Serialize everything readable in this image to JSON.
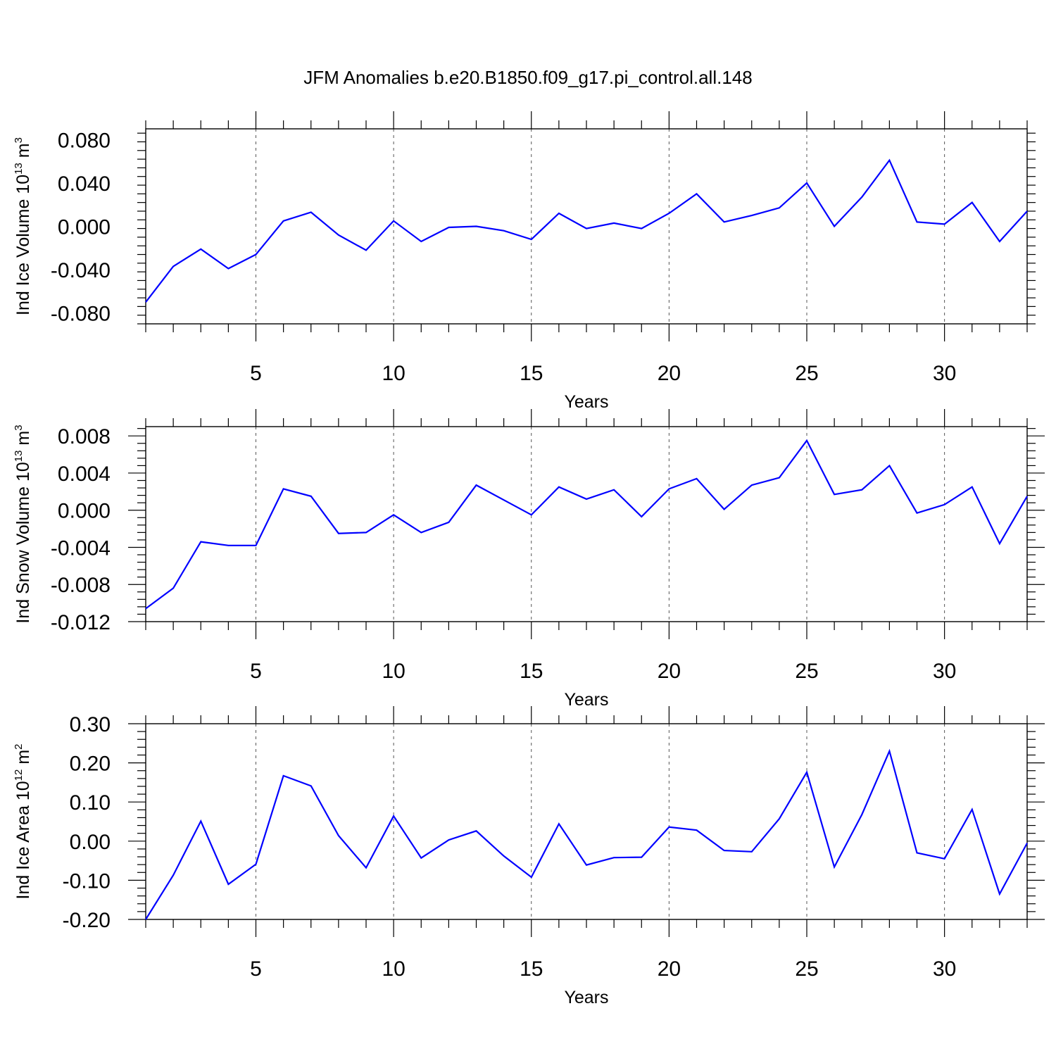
{
  "figure_title": "JFM Anomalies b.e20.B1850.f09_g17.pi_control.all.148",
  "colors": {
    "line": "#0000ff",
    "axes": "#000000",
    "grid": "#555555"
  },
  "chart_data": [
    {
      "type": "line",
      "title": "",
      "xlabel": "Years",
      "ylabel": {
        "text": "Ind Ice Volume 10",
        "sup": "13",
        "unit": " m",
        "unit_sup": "3"
      },
      "xlim": [
        1,
        33
      ],
      "ylim": [
        -0.09,
        0.09
      ],
      "xticks": [
        5,
        10,
        15,
        20,
        25,
        30
      ],
      "xtick_labels": [
        "5",
        "10",
        "15",
        "20",
        "25",
        "30"
      ],
      "yticks": [
        -0.08,
        -0.04,
        0.0,
        0.04,
        0.08
      ],
      "ytick_labels": [
        "-0.080",
        "-0.040",
        "0.000",
        "0.040",
        "0.080"
      ],
      "x": [
        1,
        2,
        3,
        4,
        5,
        6,
        7,
        8,
        9,
        10,
        11,
        12,
        13,
        14,
        15,
        16,
        17,
        18,
        19,
        20,
        21,
        22,
        23,
        24,
        25,
        26,
        27,
        28,
        29,
        30,
        31,
        32,
        33
      ],
      "series": [
        {
          "name": "Ind Ice Volume",
          "values": [
            -0.07,
            -0.037,
            -0.021,
            -0.039,
            -0.026,
            0.005,
            0.013,
            -0.008,
            -0.022,
            0.005,
            -0.014,
            -0.001,
            0.0,
            -0.004,
            -0.012,
            0.012,
            -0.002,
            0.003,
            -0.002,
            0.012,
            0.03,
            0.004,
            0.01,
            0.017,
            0.04,
            0.0,
            0.027,
            0.061,
            0.004,
            0.002,
            0.022,
            -0.014,
            0.014
          ]
        }
      ]
    },
    {
      "type": "line",
      "title": "",
      "xlabel": "Years",
      "ylabel": {
        "text": "Ind Snow Volume 10",
        "sup": "13",
        "unit": " m",
        "unit_sup": "3"
      },
      "xlim": [
        1,
        33
      ],
      "ylim": [
        -0.012,
        0.009
      ],
      "xticks": [
        5,
        10,
        15,
        20,
        25,
        30
      ],
      "xtick_labels": [
        "5",
        "10",
        "15",
        "20",
        "25",
        "30"
      ],
      "yticks": [
        -0.012,
        -0.008,
        -0.004,
        0.0,
        0.004,
        0.008
      ],
      "ytick_labels": [
        "-0.012",
        "-0.008",
        "-0.004",
        "0.000",
        "0.004",
        "0.008"
      ],
      "x": [
        1,
        2,
        3,
        4,
        5,
        6,
        7,
        8,
        9,
        10,
        11,
        12,
        13,
        14,
        15,
        16,
        17,
        18,
        19,
        20,
        21,
        22,
        23,
        24,
        25,
        26,
        27,
        28,
        29,
        30,
        31,
        32,
        33
      ],
      "series": [
        {
          "name": "Ind Snow Volume",
          "values": [
            -0.0106,
            -0.0084,
            -0.0034,
            -0.0038,
            -0.0038,
            0.0023,
            0.0015,
            -0.0025,
            -0.0024,
            -0.0005,
            -0.0024,
            -0.0013,
            0.0027,
            0.0011,
            -0.0005,
            0.0025,
            0.0012,
            0.0022,
            -0.0007,
            0.0023,
            0.0034,
            0.0001,
            0.0027,
            0.0035,
            0.0075,
            0.0017,
            0.0022,
            0.0048,
            -0.0003,
            0.0006,
            0.0025,
            -0.0036,
            0.0015
          ]
        }
      ]
    },
    {
      "type": "line",
      "title": "",
      "xlabel": "Years",
      "ylabel": {
        "text": "Ind Ice Area 10",
        "sup": "12",
        "unit": " m",
        "unit_sup": "2"
      },
      "xlim": [
        1,
        33
      ],
      "ylim": [
        -0.2,
        0.3
      ],
      "xticks": [
        5,
        10,
        15,
        20,
        25,
        30
      ],
      "xtick_labels": [
        "5",
        "10",
        "15",
        "20",
        "25",
        "30"
      ],
      "yticks": [
        -0.2,
        -0.1,
        0.0,
        0.1,
        0.2,
        0.3
      ],
      "ytick_labels": [
        "-0.20",
        "-0.10",
        "0.00",
        "0.10",
        "0.20",
        "0.30"
      ],
      "x": [
        1,
        2,
        3,
        4,
        5,
        6,
        7,
        8,
        9,
        10,
        11,
        12,
        13,
        14,
        15,
        16,
        17,
        18,
        19,
        20,
        21,
        22,
        23,
        24,
        25,
        26,
        27,
        28,
        29,
        30,
        31,
        32,
        33
      ],
      "series": [
        {
          "name": "Ind Ice Area",
          "values": [
            -0.2,
            -0.087,
            0.051,
            -0.11,
            -0.059,
            0.167,
            0.141,
            0.014,
            -0.068,
            0.064,
            -0.043,
            0.003,
            0.026,
            -0.038,
            -0.092,
            0.044,
            -0.061,
            -0.042,
            -0.041,
            0.036,
            0.028,
            -0.024,
            -0.027,
            0.057,
            0.176,
            -0.066,
            0.068,
            0.23,
            -0.03,
            -0.045,
            0.081,
            -0.135,
            -0.005
          ]
        }
      ]
    }
  ]
}
